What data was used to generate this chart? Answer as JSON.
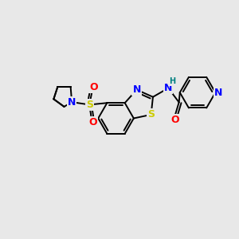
{
  "bg_color": "#e8e8e8",
  "atom_colors": {
    "C": "#000000",
    "N": "#0000ff",
    "S": "#cccc00",
    "O": "#ff0000",
    "H": "#008080"
  },
  "figsize": [
    3.0,
    3.0
  ],
  "dpi": 100
}
